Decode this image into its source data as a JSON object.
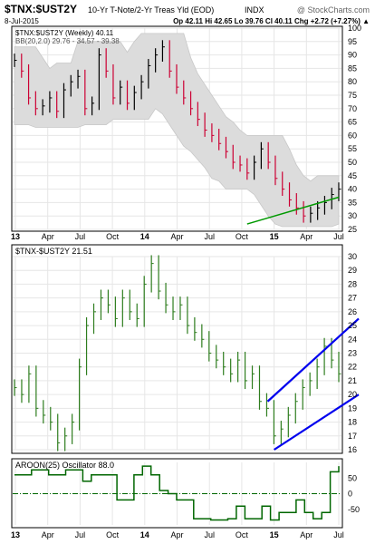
{
  "header": {
    "symbol": "$TNX:$UST2Y",
    "name": "10-Yr T-Note/2-Yr Treas Yld (EOD)",
    "exchange": "INDX",
    "copyright": "@ StockCharts.com",
    "date": "8-Jul-2015",
    "quote": "Op 42.11  Hi 42.65  Lo 39.76  Cl 40.11  Chg +2.72 (+7.27%) ▲"
  },
  "colors": {
    "up": "#000000",
    "down": "#cc0033",
    "line_bars": "#2e7d1e",
    "bb_band": "#dcdcdc",
    "trend": "#0000ee",
    "support": "#009900",
    "aroon": "#006600",
    "grid": "#e6e6e6"
  },
  "chart_data": [
    {
      "type": "ohlc",
      "panel": "price-weekly",
      "legend": [
        "$TNX:$UST2Y (Weekly) 40.11",
        "BB(20,2.0) 29.76 - 34.57 - 39.38"
      ],
      "ylim": [
        25,
        100
      ],
      "y_ticks": [
        25,
        30,
        35,
        40,
        45,
        50,
        55,
        60,
        65,
        70,
        75,
        80,
        85,
        90,
        95,
        100
      ],
      "x_tick_labels": [
        "13",
        "Apr",
        "Jul",
        "Oct",
        "14",
        "Apr",
        "Jul",
        "Oct",
        "15",
        "Apr",
        "Jul"
      ],
      "closes_sampled": [
        88,
        84,
        74,
        70,
        71,
        74,
        69,
        77,
        80,
        82,
        70,
        72,
        90,
        84,
        74,
        78,
        72,
        76,
        80,
        86,
        90,
        93,
        84,
        78,
        74,
        70,
        66,
        62,
        60,
        57,
        54,
        50,
        49,
        46,
        50,
        55,
        50,
        44,
        40,
        36,
        33,
        30,
        31,
        33,
        35,
        38,
        40
      ],
      "bb_upper": 39.38,
      "bb_middle": 34.57,
      "bb_lower": 29.76,
      "last": 40.11
    },
    {
      "type": "ohlc",
      "panel": "spread-daily",
      "legend": "$TNX-$UST2Y 21.51",
      "ylim": [
        16,
        30
      ],
      "y_ticks": [
        16,
        17,
        18,
        19,
        20,
        21,
        22,
        23,
        24,
        25,
        26,
        27,
        28,
        29,
        30
      ],
      "closes_sampled": [
        20.5,
        20,
        21.5,
        19,
        18.5,
        18,
        16.5,
        17,
        18,
        22,
        25,
        26,
        27,
        26.5,
        25.5,
        27,
        26,
        25.5,
        28,
        29.5,
        27.5,
        26.5,
        26,
        26.5,
        25,
        24.5,
        24,
        23,
        22.5,
        22,
        21.5,
        22.5,
        21,
        21.5,
        19.5,
        19,
        17,
        17.5,
        18.5,
        19.5,
        20.5,
        21,
        22,
        23.5,
        22.5,
        21.5
      ],
      "channel": {
        "lower": [
          [
            15.0,
            16
          ],
          [
            16.05,
            20
          ]
        ],
        "upper": [
          [
            14.95,
            19.5
          ],
          [
            16.05,
            25.5
          ]
        ]
      },
      "last": 21.51
    },
    {
      "type": "line",
      "panel": "aroon-oscillator",
      "legend": "AROON(25) Oscillator 88.0",
      "ylim": [
        -100,
        100
      ],
      "y_ticks": [
        50,
        0,
        -50
      ],
      "values": [
        60,
        60,
        76,
        76,
        60,
        60,
        76,
        76,
        40,
        60,
        60,
        60,
        -20,
        -20,
        60,
        88,
        60,
        10,
        0,
        -20,
        -20,
        -80,
        -80,
        -84,
        -84,
        -80,
        -40,
        -80,
        -80,
        -40,
        -84,
        -60,
        -60,
        -20,
        -60,
        -80,
        -60,
        70,
        88
      ],
      "last": 88.0
    }
  ]
}
